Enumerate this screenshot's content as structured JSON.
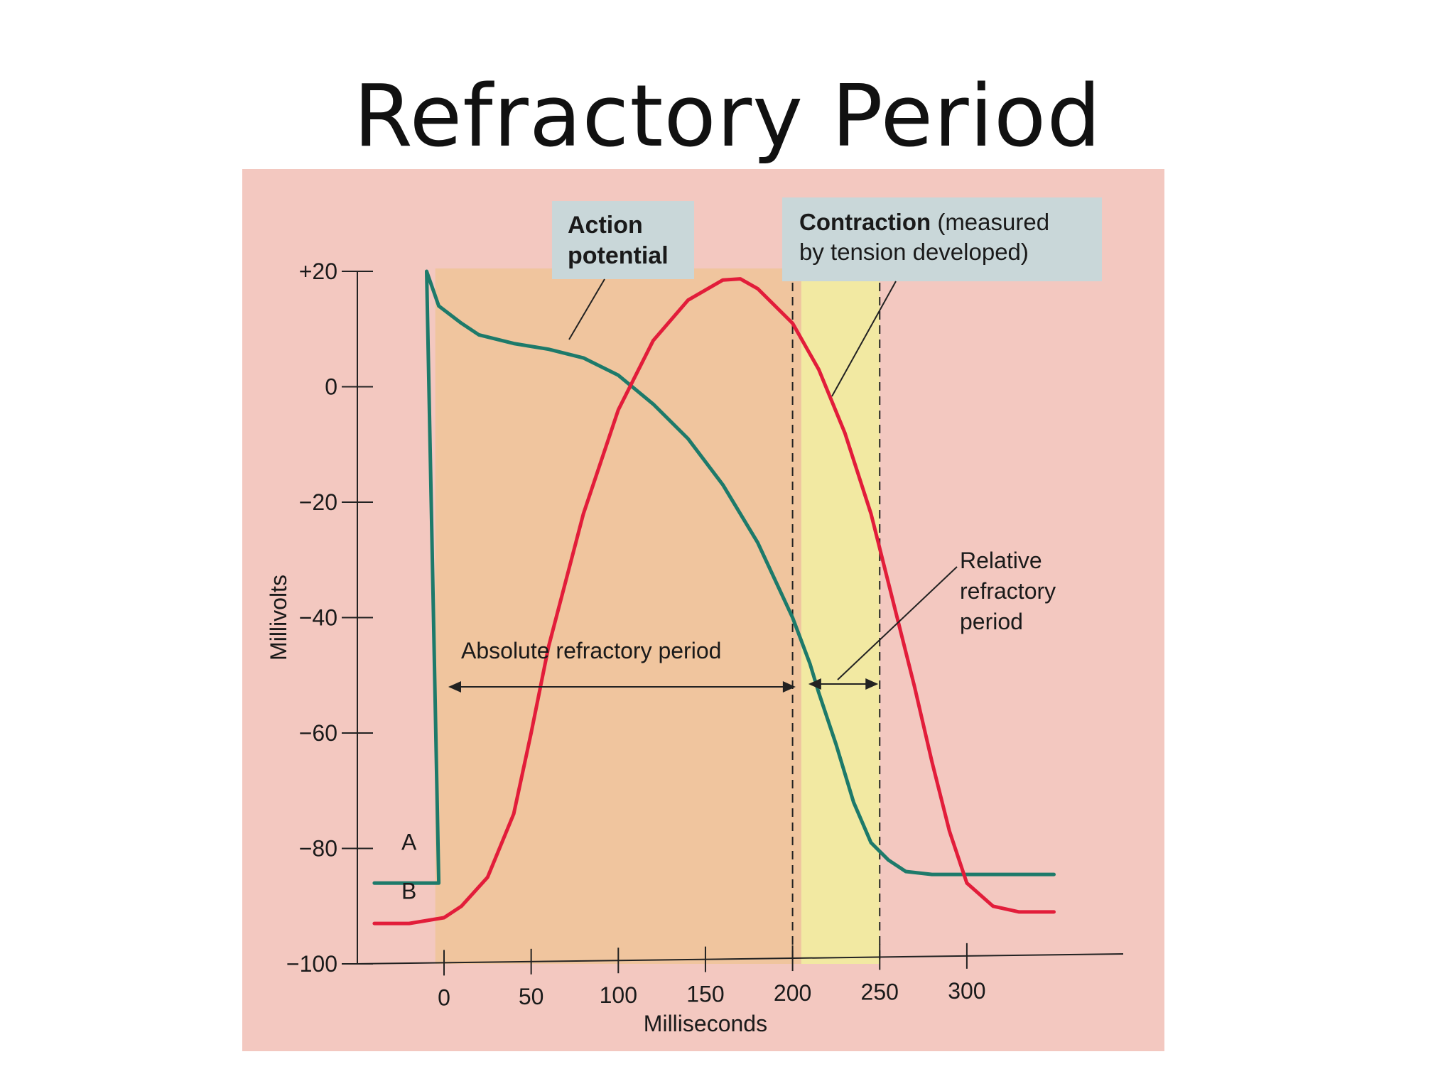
{
  "slide": {
    "title": "Refractory Period"
  },
  "chart_data": {
    "type": "line",
    "ylabel": "Millivolts",
    "xlabel": "Milliseconds",
    "ylim": [
      -100,
      20
    ],
    "xlim": [
      -50,
      360
    ],
    "yticks": [
      20,
      0,
      -20,
      -40,
      -60,
      -80,
      -100
    ],
    "ytick_labels": [
      "+20",
      "0",
      "−20",
      "−40",
      "−60",
      "−80",
      "−100"
    ],
    "xticks": [
      0,
      50,
      100,
      150,
      200,
      250,
      300
    ],
    "xtick_labels": [
      "0",
      "50",
      "100",
      "150",
      "200",
      "250",
      "300"
    ],
    "series": [
      {
        "name": "Action potential",
        "curve_label": "A",
        "color": "#1d7a6a",
        "points": [
          [
            -40,
            -86
          ],
          [
            -3,
            -86
          ],
          [
            -3,
            -86
          ],
          [
            -10,
            20
          ],
          [
            -3,
            14
          ],
          [
            10,
            11
          ],
          [
            20,
            9
          ],
          [
            40,
            7.5
          ],
          [
            60,
            6.5
          ],
          [
            80,
            5
          ],
          [
            100,
            2
          ],
          [
            120,
            -3
          ],
          [
            140,
            -9
          ],
          [
            160,
            -17
          ],
          [
            180,
            -27
          ],
          [
            200,
            -40
          ],
          [
            210,
            -48
          ],
          [
            215,
            -53
          ],
          [
            225,
            -62
          ],
          [
            235,
            -72
          ],
          [
            245,
            -79
          ],
          [
            255,
            -82
          ],
          [
            265,
            -84
          ],
          [
            280,
            -84.5
          ],
          [
            300,
            -84.5
          ],
          [
            330,
            -84.5
          ],
          [
            350,
            -84.5
          ]
        ]
      },
      {
        "name": "Contraction (measured by tension developed)",
        "curve_label": "B",
        "color": "#e21d3a",
        "points": [
          [
            -40,
            -93
          ],
          [
            -20,
            -93
          ],
          [
            0,
            -92
          ],
          [
            10,
            -90
          ],
          [
            25,
            -85
          ],
          [
            40,
            -74
          ],
          [
            50,
            -60
          ],
          [
            60,
            -45
          ],
          [
            80,
            -22
          ],
          [
            100,
            -4
          ],
          [
            120,
            8
          ],
          [
            140,
            15
          ],
          [
            160,
            18.5
          ],
          [
            170,
            18.7
          ],
          [
            180,
            17
          ],
          [
            200,
            11
          ],
          [
            215,
            3
          ],
          [
            230,
            -8
          ],
          [
            245,
            -22
          ],
          [
            260,
            -40
          ],
          [
            270,
            -52
          ],
          [
            280,
            -65
          ],
          [
            290,
            -77
          ],
          [
            300,
            -86
          ],
          [
            315,
            -90
          ],
          [
            330,
            -91
          ],
          [
            350,
            -91
          ]
        ]
      }
    ],
    "annotations": [
      {
        "text": "Action potential",
        "type": "callout"
      },
      {
        "text_bold": "Contraction",
        "text_rest_line1": "(measured",
        "text_rest_line2": "by tension developed)",
        "type": "callout"
      },
      {
        "text": "Absolute refractory period",
        "type": "span",
        "x_start": 0,
        "x_end": 205
      },
      {
        "text_lines": [
          "Relative",
          "refractory",
          "period"
        ],
        "type": "span",
        "x_start": 205,
        "x_end": 250
      }
    ],
    "shaded_regions": [
      {
        "label": "Absolute refractory period",
        "x_start": -5,
        "x_end": 205,
        "color": "#f0c49a"
      },
      {
        "label": "Relative refractory period",
        "x_start": 205,
        "x_end": 250,
        "color": "#f2ec9e"
      }
    ],
    "dashed_lines_x": [
      200,
      250
    ]
  }
}
